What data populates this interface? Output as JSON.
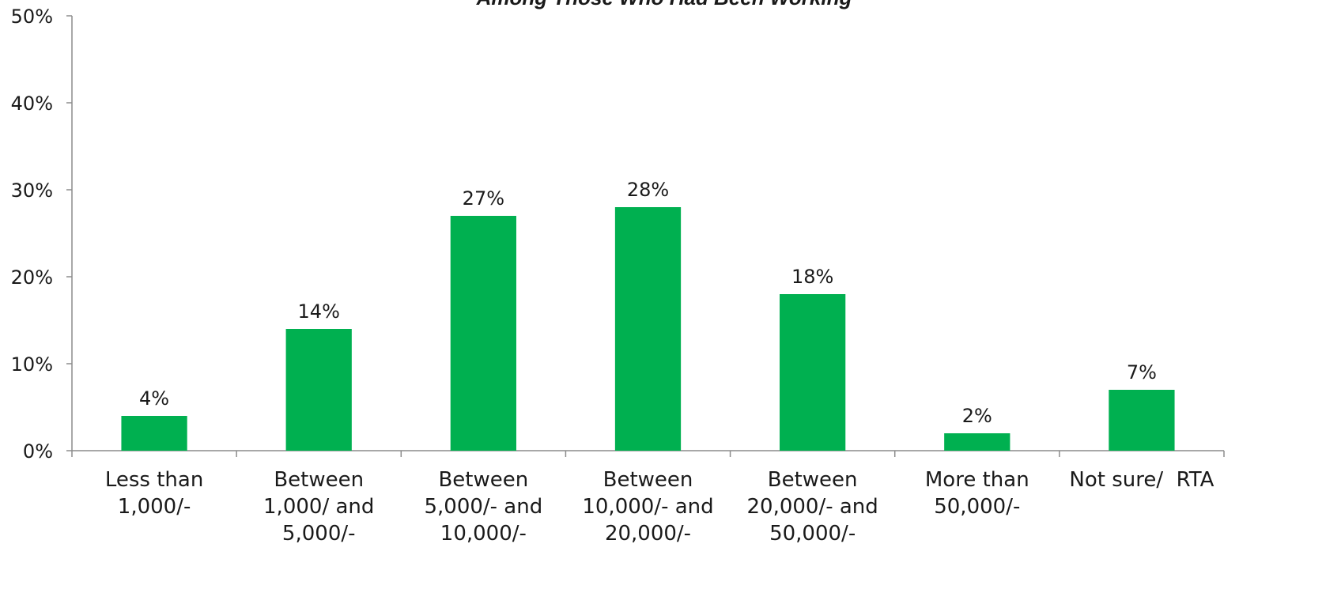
{
  "chart_data": {
    "type": "bar",
    "title": "Among Those Who Had Been Working",
    "categories": [
      [
        "Less than",
        "1,000/-"
      ],
      [
        "Between",
        "1,000/ and",
        "5,000/-"
      ],
      [
        "Between",
        "5,000/- and",
        "10,000/-"
      ],
      [
        "Between",
        "10,000/- and",
        "20,000/-"
      ],
      [
        "Between",
        "20,000/- and",
        "50,000/-"
      ],
      [
        "More than",
        "50,000/-"
      ],
      [
        "Not sure/  RTA"
      ]
    ],
    "values": [
      4,
      14,
      27,
      28,
      18,
      2,
      7
    ],
    "value_labels": [
      "4%",
      "14%",
      "27%",
      "28%",
      "18%",
      "2%",
      "7%"
    ],
    "ylim": [
      0,
      50
    ],
    "yticks": [
      0,
      10,
      20,
      30,
      40,
      50
    ],
    "ytick_labels": [
      "0%",
      "10%",
      "20%",
      "30%",
      "40%",
      "50%"
    ],
    "bar_color": "#00b050",
    "grid": false,
    "legend": "none"
  }
}
